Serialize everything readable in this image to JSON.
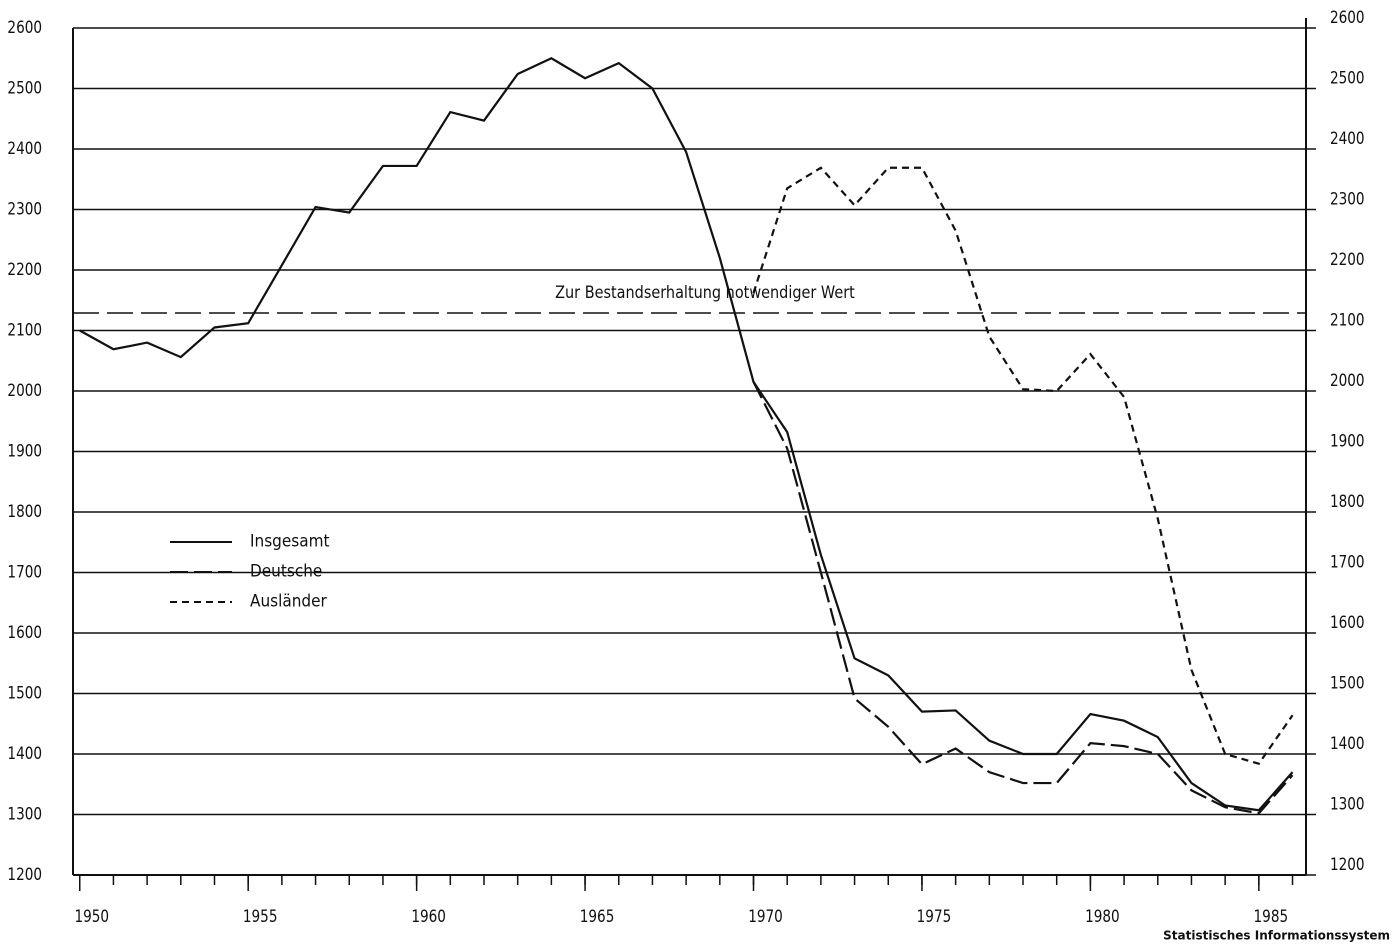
{
  "chart_data": {
    "type": "line",
    "x": [
      1950,
      1951,
      1952,
      1953,
      1954,
      1955,
      1956,
      1957,
      1958,
      1959,
      1960,
      1961,
      1962,
      1963,
      1964,
      1965,
      1966,
      1967,
      1968,
      1969,
      1970,
      1971,
      1972,
      1973,
      1974,
      1975,
      1976,
      1977,
      1978,
      1979,
      1980,
      1981,
      1982,
      1983,
      1984,
      1985,
      1986
    ],
    "xlim": [
      1949.8,
      1986.4
    ],
    "xticks": [
      1950,
      1955,
      1960,
      1965,
      1970,
      1975,
      1980,
      1985
    ],
    "ylim": [
      1200,
      2600
    ],
    "yticks": [
      1200,
      1300,
      1400,
      1500,
      1600,
      1700,
      1800,
      1900,
      2000,
      2100,
      2200,
      2300,
      2400,
      2500,
      2600
    ],
    "y2lim": [
      1200,
      2600
    ],
    "y2ticks": [
      1200,
      1300,
      1400,
      1500,
      1600,
      1700,
      1800,
      1900,
      2000,
      2100,
      2200,
      2300,
      2400,
      2500,
      2600
    ],
    "grid": true,
    "legend": "left",
    "series": [
      {
        "name": "Insgesamt",
        "color": "#111111",
        "dash": "none",
        "values": [
          2100,
          2069,
          2080,
          2056,
          2105,
          2112,
          2208,
          2304,
          2295,
          2372,
          2372,
          2461,
          2447,
          2524,
          2550,
          2517,
          2542,
          2500,
          2395,
          2220,
          2015,
          1932,
          1729,
          1558,
          1530,
          1470,
          1472,
          1422,
          1400,
          1400,
          1466,
          1455,
          1428,
          1352,
          1315,
          1307,
          1370
        ]
      },
      {
        "name": "Deutsche",
        "color": "#111111",
        "dash": "18 6",
        "values": [
          null,
          null,
          null,
          null,
          null,
          null,
          null,
          null,
          null,
          null,
          null,
          null,
          null,
          null,
          null,
          null,
          null,
          null,
          null,
          null,
          2015,
          1905,
          1700,
          1492,
          1445,
          1383,
          1409,
          1370,
          1352,
          1352,
          1418,
          1413,
          1400,
          1340,
          1312,
          1302,
          1365
        ]
      },
      {
        "name": "Ausländer",
        "color": "#111111",
        "dash": "7 5",
        "axis": "y2",
        "values": [
          null,
          null,
          null,
          null,
          null,
          null,
          null,
          null,
          null,
          null,
          null,
          null,
          null,
          null,
          null,
          null,
          null,
          null,
          null,
          null,
          2162,
          2335,
          2369,
          2307,
          2369,
          2369,
          2265,
          2090,
          2003,
          2000,
          2061,
          1990,
          1789,
          1539,
          1400,
          1384,
          1464
        ]
      }
    ],
    "reference_line": {
      "value": 2129,
      "label": "Zur Bestandserhaltung notwendiger Wert"
    },
    "source": "Statistisches Informationssystem"
  }
}
